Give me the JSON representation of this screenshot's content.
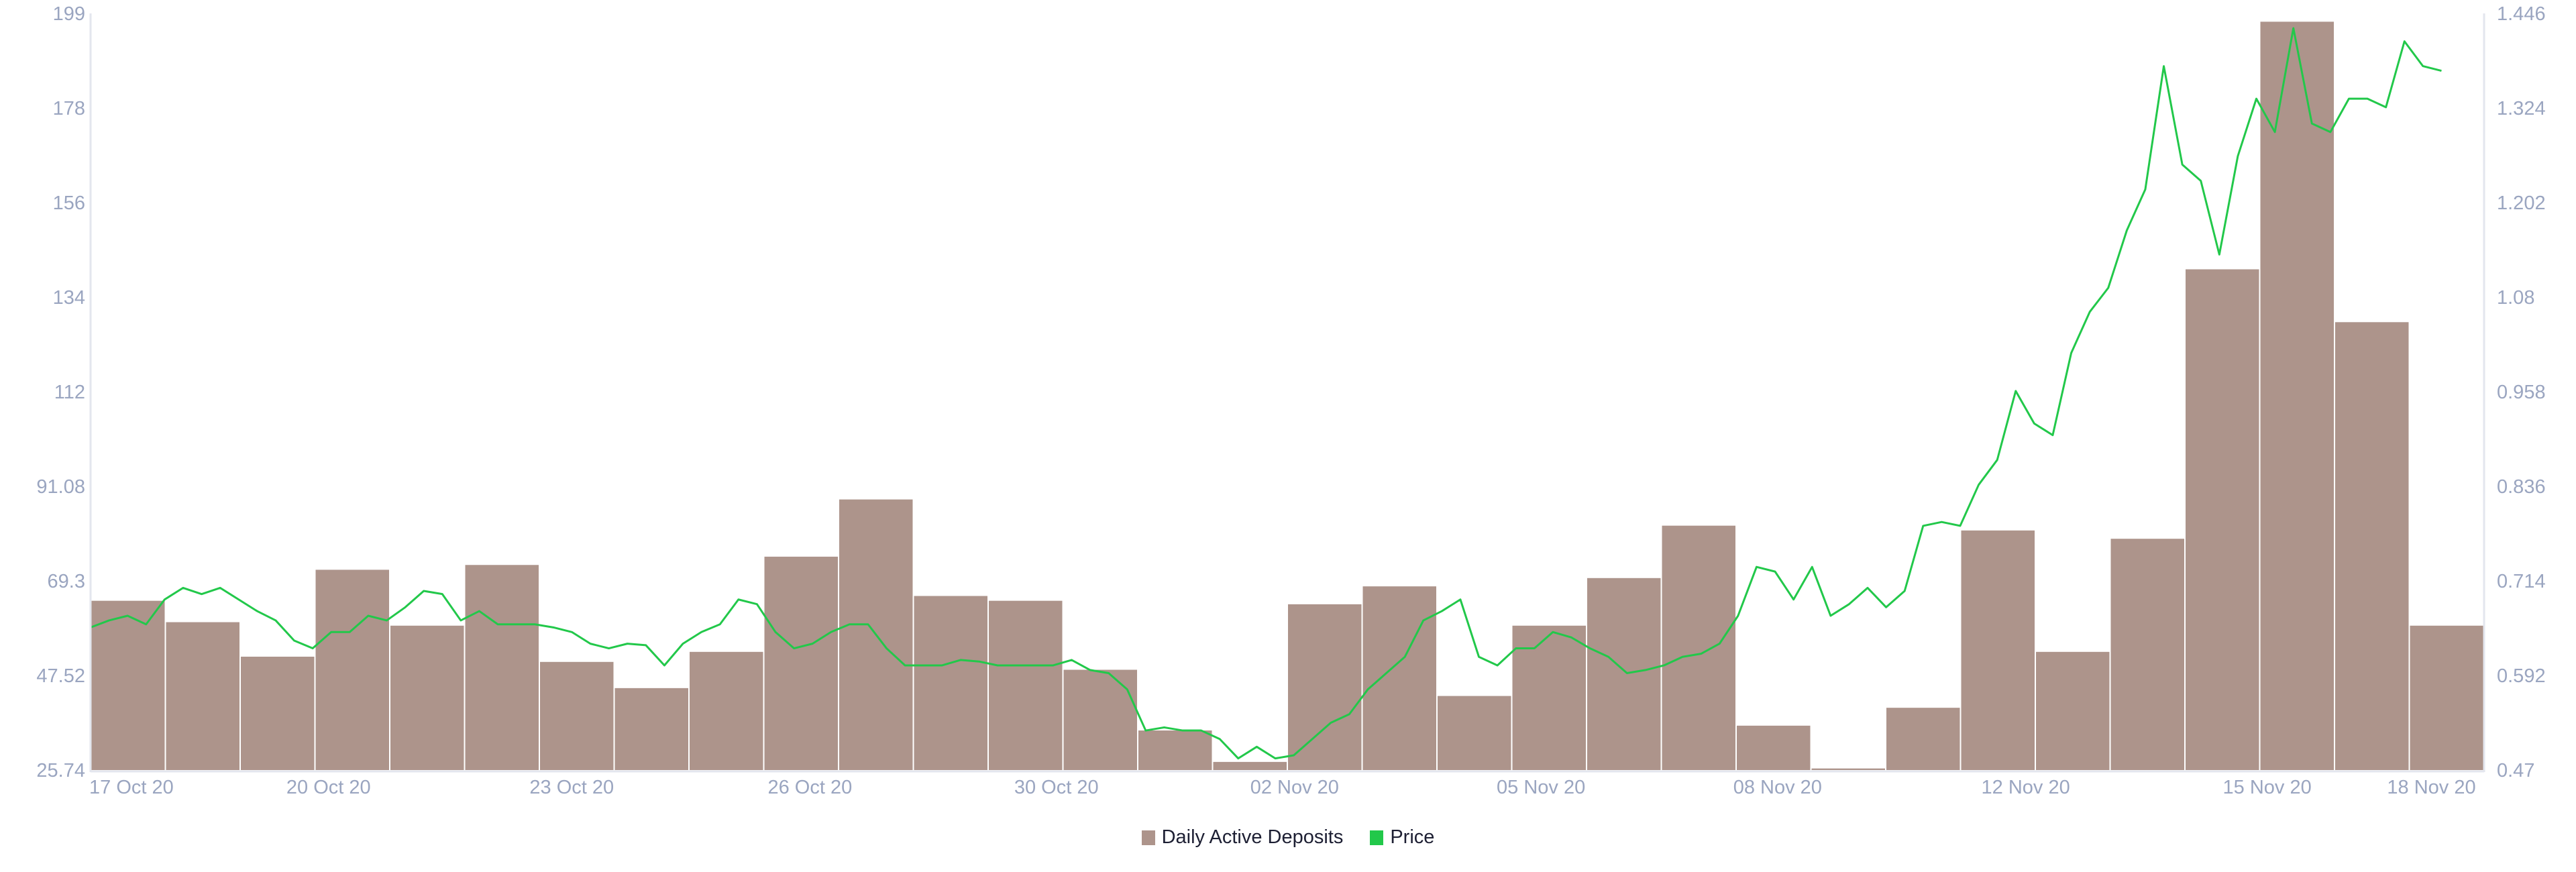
{
  "chart_data": {
    "type": "bar+line",
    "title": "",
    "legend_position": "bottom-center",
    "grid": false,
    "colors": {
      "bars": "#ad948b",
      "line": "#22c84a",
      "axis_text": "#9aa5c0"
    },
    "x_ticks": [
      "17 Oct 20",
      "20 Oct 20",
      "23 Oct 20",
      "26 Oct 20",
      "30 Oct 20",
      "02 Nov 20",
      "05 Nov 20",
      "08 Nov 20",
      "12 Nov 20",
      "15 Nov 20",
      "18 Nov 20"
    ],
    "y_left": {
      "ticks": [
        "199",
        "178",
        "156",
        "134",
        "112",
        "91.08",
        "69.3",
        "47.52",
        "25.74"
      ],
      "range": [
        25.74,
        199
      ]
    },
    "y_right": {
      "ticks": [
        "1.446",
        "1.324",
        "1.202",
        "1.08",
        "0.958",
        "0.836",
        "0.714",
        "0.592",
        "0.47"
      ],
      "range": [
        0.47,
        1.446
      ]
    },
    "series": [
      {
        "name": "Daily Active Deposits",
        "type": "bar",
        "axis": "left",
        "dates": [
          "2020-10-17",
          "2020-10-18",
          "2020-10-19",
          "2020-10-20",
          "2020-10-21",
          "2020-10-22",
          "2020-10-23",
          "2020-10-24",
          "2020-10-25",
          "2020-10-26",
          "2020-10-27",
          "2020-10-28",
          "2020-10-29",
          "2020-10-30",
          "2020-10-31",
          "2020-11-01",
          "2020-11-02",
          "2020-11-03",
          "2020-11-04",
          "2020-11-05",
          "2020-11-06",
          "2020-11-07",
          "2020-11-08",
          "2020-11-09",
          "2020-11-10",
          "2020-11-11",
          "2020-11-12",
          "2020-11-13",
          "2020-11-14",
          "2020-11-15",
          "2020-11-16",
          "2020-11-17"
        ],
        "values": [
          64.5,
          59.6,
          51.7,
          71.6,
          58.8,
          72.7,
          50.5,
          44.5,
          52.8,
          74.6,
          87.7,
          65.6,
          64.5,
          48.7,
          34.8,
          27.6,
          63.7,
          67.8,
          42.7,
          58.8,
          69.7,
          81.7,
          35.9,
          26.1,
          40.0,
          80.6,
          52.8,
          78.7,
          140.4,
          197.1,
          128.3,
          58.8
        ]
      },
      {
        "name": "Price",
        "type": "line",
        "axis": "right",
        "first_date": "2020-10-17 00:00",
        "last_date": "2020-11-17 10:00",
        "values": [
          0.654,
          0.663,
          0.669,
          0.658,
          0.69,
          0.705,
          0.697,
          0.705,
          0.69,
          0.675,
          0.663,
          0.637,
          0.627,
          0.648,
          0.648,
          0.669,
          0.663,
          0.68,
          0.701,
          0.697,
          0.663,
          0.675,
          0.658,
          0.658,
          0.658,
          0.654,
          0.648,
          0.633,
          0.627,
          0.633,
          0.631,
          0.605,
          0.633,
          0.648,
          0.658,
          0.69,
          0.684,
          0.648,
          0.627,
          0.633,
          0.648,
          0.658,
          0.658,
          0.627,
          0.605,
          0.605,
          0.605,
          0.612,
          0.61,
          0.605,
          0.605,
          0.605,
          0.605,
          0.612,
          0.599,
          0.595,
          0.574,
          0.521,
          0.525,
          0.521,
          0.521,
          0.51,
          0.485,
          0.5,
          0.485,
          0.489,
          0.51,
          0.531,
          0.542,
          0.574,
          0.595,
          0.616,
          0.663,
          0.675,
          0.69,
          0.616,
          0.605,
          0.627,
          0.627,
          0.648,
          0.641,
          0.627,
          0.616,
          0.595,
          0.599,
          0.605,
          0.616,
          0.62,
          0.633,
          0.669,
          0.732,
          0.726,
          0.69,
          0.732,
          0.669,
          0.684,
          0.705,
          0.68,
          0.701,
          0.785,
          0.79,
          0.785,
          0.838,
          0.87,
          0.959,
          0.917,
          0.902,
          1.008,
          1.061,
          1.092,
          1.166,
          1.219,
          1.378,
          1.251,
          1.23,
          1.135,
          1.262,
          1.336,
          1.293,
          1.427,
          1.304,
          1.293,
          1.336,
          1.336,
          1.325,
          1.41,
          1.378,
          1.372
        ]
      }
    ]
  },
  "legend": {
    "items": [
      {
        "label": "Daily Active Deposits",
        "color": "#ad948b"
      },
      {
        "label": "Price",
        "color": "#22c84a"
      }
    ]
  }
}
